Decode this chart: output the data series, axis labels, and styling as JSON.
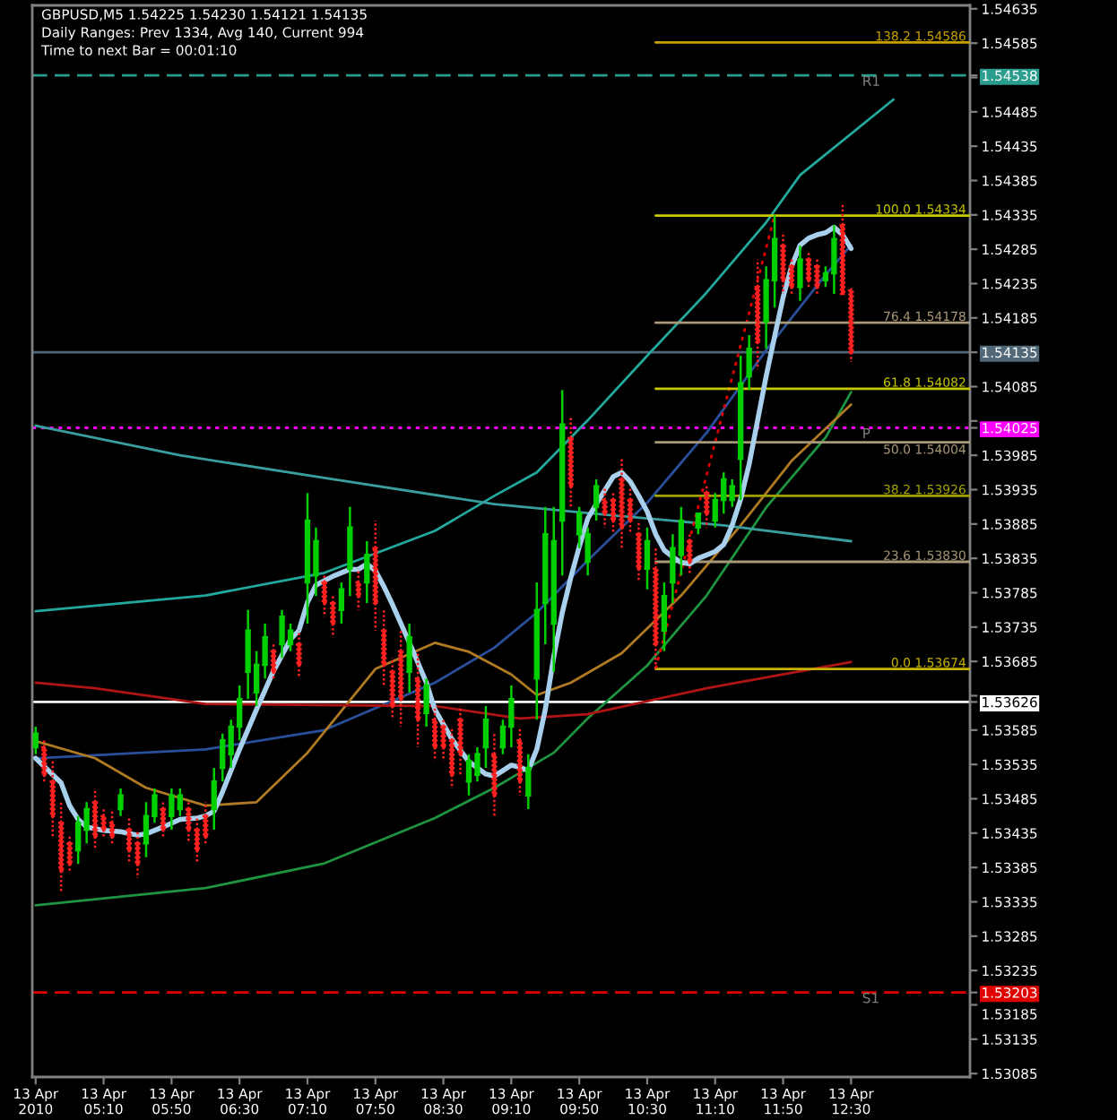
{
  "chart_data": {
    "type": "candlestick",
    "title": "GBPUSD,M5 1.54225 1.54230 1.54121 1.54135",
    "subtitle": "Daily Ranges: Prev 1334, Avg 140, Current 994",
    "annotations": [
      "Time to next Bar = 00:01:10"
    ],
    "x": [
      "2010-04-13T04:30",
      "2010-04-13T04:35",
      "2010-04-13T04:40",
      "2010-04-13T04:45",
      "2010-04-13T04:50",
      "2010-04-13T04:55",
      "2010-04-13T05:00",
      "2010-04-13T05:05",
      "2010-04-13T05:10",
      "2010-04-13T05:15",
      "2010-04-13T05:20",
      "2010-04-13T05:25",
      "2010-04-13T05:30",
      "2010-04-13T05:35",
      "2010-04-13T05:40",
      "2010-04-13T05:45",
      "2010-04-13T05:50",
      "2010-04-13T05:55",
      "2010-04-13T06:00",
      "2010-04-13T06:05",
      "2010-04-13T06:10",
      "2010-04-13T06:15",
      "2010-04-13T06:20",
      "2010-04-13T06:25",
      "2010-04-13T06:30",
      "2010-04-13T06:35",
      "2010-04-13T06:40",
      "2010-04-13T06:45",
      "2010-04-13T06:50",
      "2010-04-13T06:55",
      "2010-04-13T07:00",
      "2010-04-13T07:05",
      "2010-04-13T07:10",
      "2010-04-13T07:15",
      "2010-04-13T07:20",
      "2010-04-13T07:25",
      "2010-04-13T07:30",
      "2010-04-13T07:35",
      "2010-04-13T07:40",
      "2010-04-13T07:45",
      "2010-04-13T07:50",
      "2010-04-13T07:55",
      "2010-04-13T08:00",
      "2010-04-13T08:05",
      "2010-04-13T08:10",
      "2010-04-13T08:15",
      "2010-04-13T08:20",
      "2010-04-13T08:25",
      "2010-04-13T08:30",
      "2010-04-13T08:35",
      "2010-04-13T08:40",
      "2010-04-13T08:45",
      "2010-04-13T08:50",
      "2010-04-13T08:55",
      "2010-04-13T09:00",
      "2010-04-13T09:05",
      "2010-04-13T09:10",
      "2010-04-13T09:15",
      "2010-04-13T09:20",
      "2010-04-13T09:25",
      "2010-04-13T09:30",
      "2010-04-13T09:35",
      "2010-04-13T09:40",
      "2010-04-13T09:45",
      "2010-04-13T09:50",
      "2010-04-13T09:55",
      "2010-04-13T10:00",
      "2010-04-13T10:05",
      "2010-04-13T10:10",
      "2010-04-13T10:15",
      "2010-04-13T10:20",
      "2010-04-13T10:25",
      "2010-04-13T10:30",
      "2010-04-13T10:35",
      "2010-04-13T10:40",
      "2010-04-13T10:45",
      "2010-04-13T10:50",
      "2010-04-13T10:55",
      "2010-04-13T11:00",
      "2010-04-13T11:05",
      "2010-04-13T11:10",
      "2010-04-13T11:15",
      "2010-04-13T11:20",
      "2010-04-13T11:25",
      "2010-04-13T11:30",
      "2010-04-13T11:35",
      "2010-04-13T11:40",
      "2010-04-13T11:45",
      "2010-04-13T11:50",
      "2010-04-13T11:55",
      "2010-04-13T12:00",
      "2010-04-13T12:05",
      "2010-04-13T12:10",
      "2010-04-13T12:15",
      "2010-04-13T12:20",
      "2010-04-13T12:25",
      "2010-04-13T12:30"
    ],
    "ohlc": [
      [
        1.5356,
        1.5359,
        1.5355,
        1.5358
      ],
      [
        1.5356,
        1.5357,
        1.5351,
        1.5352
      ],
      [
        1.5351,
        1.5354,
        1.5343,
        1.5346
      ],
      [
        1.5345,
        1.5348,
        1.5335,
        1.5338
      ],
      [
        1.5342,
        1.5343,
        1.5338,
        1.5339
      ],
      [
        1.5341,
        1.5346,
        1.5339,
        1.5345
      ],
      [
        1.5344,
        1.5348,
        1.5342,
        1.5347
      ],
      [
        1.5348,
        1.535,
        1.5341,
        1.5343
      ],
      [
        1.5346,
        1.5347,
        1.5343,
        1.5344
      ],
      [
        1.5345,
        1.5347,
        1.5342,
        1.5343
      ],
      [
        1.5347,
        1.535,
        1.5346,
        1.5349
      ],
      [
        1.5344,
        1.5346,
        1.5339,
        1.5341
      ],
      [
        1.5342,
        1.5344,
        1.5337,
        1.5339
      ],
      [
        1.5342,
        1.5348,
        1.534,
        1.5346
      ],
      [
        1.5346,
        1.535,
        1.5345,
        1.5349
      ],
      [
        1.5347,
        1.5348,
        1.5343,
        1.5344
      ],
      [
        1.5346,
        1.535,
        1.5344,
        1.5349
      ],
      [
        1.5347,
        1.535,
        1.5346,
        1.5349
      ],
      [
        1.5347,
        1.5348,
        1.5342,
        1.5344
      ],
      [
        1.5344,
        1.5346,
        1.5339,
        1.5341
      ],
      [
        1.5346,
        1.5348,
        1.5342,
        1.5343
      ],
      [
        1.5347,
        1.5353,
        1.5344,
        1.5351
      ],
      [
        1.5353,
        1.5358,
        1.5351,
        1.5357
      ],
      [
        1.5355,
        1.536,
        1.5353,
        1.5359
      ],
      [
        1.5359,
        1.5365,
        1.5357,
        1.5363
      ],
      [
        1.5367,
        1.5376,
        1.5363,
        1.5373
      ],
      [
        1.5364,
        1.537,
        1.5362,
        1.5368
      ],
      [
        1.5368,
        1.5374,
        1.5366,
        1.5372
      ],
      [
        1.537,
        1.5371,
        1.5366,
        1.5367
      ],
      [
        1.5371,
        1.5376,
        1.5369,
        1.5375
      ],
      [
        1.5371,
        1.5374,
        1.537,
        1.5373
      ],
      [
        1.5371,
        1.5373,
        1.5366,
        1.5368
      ],
      [
        1.538,
        1.5393,
        1.5374,
        1.5389
      ],
      [
        1.5381,
        1.5388,
        1.5378,
        1.5386
      ],
      [
        1.538,
        1.5381,
        1.5375,
        1.5377
      ],
      [
        1.5377,
        1.5378,
        1.5372,
        1.5374
      ],
      [
        1.5376,
        1.538,
        1.5374,
        1.5379
      ],
      [
        1.5382,
        1.5391,
        1.5378,
        1.5388
      ],
      [
        1.538,
        1.5382,
        1.5376,
        1.5378
      ],
      [
        1.538,
        1.5386,
        1.5377,
        1.5384
      ],
      [
        1.5385,
        1.5389,
        1.5373,
        1.5377
      ],
      [
        1.5373,
        1.5376,
        1.5365,
        1.5368
      ],
      [
        1.5367,
        1.5369,
        1.536,
        1.5362
      ],
      [
        1.537,
        1.5373,
        1.5359,
        1.5363
      ],
      [
        1.5367,
        1.5374,
        1.5364,
        1.5372
      ],
      [
        1.5366,
        1.537,
        1.5356,
        1.536
      ],
      [
        1.5361,
        1.5366,
        1.5359,
        1.5365
      ],
      [
        1.536,
        1.5362,
        1.5354,
        1.5356
      ],
      [
        1.5359,
        1.536,
        1.5354,
        1.5356
      ],
      [
        1.5357,
        1.5359,
        1.535,
        1.5352
      ],
      [
        1.536,
        1.5362,
        1.5352,
        1.5355
      ],
      [
        1.5351,
        1.5355,
        1.5349,
        1.5354
      ],
      [
        1.5352,
        1.5356,
        1.5351,
        1.5355
      ],
      [
        1.5356,
        1.5362,
        1.5353,
        1.536
      ],
      [
        1.5355,
        1.5358,
        1.5346,
        1.5349
      ],
      [
        1.5356,
        1.536,
        1.5355,
        1.5359
      ],
      [
        1.5359,
        1.5365,
        1.5356,
        1.5363
      ],
      [
        1.5357,
        1.5359,
        1.5349,
        1.5351
      ],
      [
        1.5349,
        1.5355,
        1.5347,
        1.5353
      ],
      [
        1.5366,
        1.538,
        1.536,
        1.5376
      ],
      [
        1.5377,
        1.5391,
        1.5371,
        1.5387
      ],
      [
        1.5374,
        1.5391,
        1.5367,
        1.5386
      ],
      [
        1.5389,
        1.5408,
        1.5381,
        1.5403
      ],
      [
        1.5401,
        1.5404,
        1.5391,
        1.5394
      ],
      [
        1.5387,
        1.5391,
        1.5385,
        1.539
      ],
      [
        1.5383,
        1.5388,
        1.5381,
        1.5387
      ],
      [
        1.5391,
        1.5395,
        1.5389,
        1.5394
      ],
      [
        1.5392,
        1.5394,
        1.5388,
        1.539
      ],
      [
        1.5392,
        1.5393,
        1.5387,
        1.5389
      ],
      [
        1.5395,
        1.5398,
        1.5385,
        1.5388
      ],
      [
        1.5392,
        1.5394,
        1.5387,
        1.5389
      ],
      [
        1.5387,
        1.5389,
        1.538,
        1.5382
      ],
      [
        1.5382,
        1.5388,
        1.5379,
        1.5386
      ],
      [
        1.5382,
        1.5385,
        1.53674,
        1.5371
      ],
      [
        1.5373,
        1.538,
        1.537,
        1.5378
      ],
      [
        1.538,
        1.5387,
        1.5377,
        1.5385
      ],
      [
        1.5384,
        1.5391,
        1.5381,
        1.5389
      ],
      [
        1.5386,
        1.5387,
        1.5381,
        1.5383
      ],
      [
        1.5388,
        1.539,
        1.5387,
        1.539
      ],
      [
        1.5393,
        1.5394,
        1.5388,
        1.539
      ],
      [
        1.5389,
        1.5393,
        1.5388,
        1.5392
      ],
      [
        1.5392,
        1.5396,
        1.539,
        1.5395
      ],
      [
        1.5392,
        1.5395,
        1.5391,
        1.5394
      ],
      [
        1.5398,
        1.5413,
        1.5392,
        1.5409
      ],
      [
        1.541,
        1.5416,
        1.5408,
        1.5414
      ],
      [
        1.5423,
        1.5427,
        1.5411,
        1.5415
      ],
      [
        1.5418,
        1.5426,
        1.5414,
        1.5424
      ],
      [
        1.5424,
        1.54334,
        1.542,
        1.543
      ],
      [
        1.5429,
        1.5431,
        1.5422,
        1.5424
      ],
      [
        1.5426,
        1.5427,
        1.5422,
        1.5423
      ],
      [
        1.5423,
        1.5429,
        1.5421,
        1.5427
      ],
      [
        1.5427,
        1.5428,
        1.5423,
        1.5424
      ],
      [
        1.5426,
        1.5427,
        1.5422,
        1.5423
      ],
      [
        1.5424,
        1.5426,
        1.5423,
        1.5425
      ],
      [
        1.5425,
        1.5432,
        1.5422,
        1.543
      ],
      [
        1.5432,
        1.5435,
        1.5422,
        1.5422
      ],
      [
        1.54225,
        1.5423,
        1.54121,
        1.54135
      ]
    ],
    "series": [
      {
        "type": "line",
        "color": "#22a89c",
        "x": [
          "2010-04-13T04:30",
          "2010-04-13T06:10",
          "2010-04-13T07:20",
          "2010-04-13T08:25",
          "2010-04-13T09:00",
          "2010-04-13T09:25",
          "2010-04-13T09:55",
          "2010-04-13T10:30",
          "2010-04-13T11:05",
          "2010-04-13T11:40",
          "2010-04-13T12:00",
          "2010-04-13T12:55"
        ],
        "values": [
          1.53758,
          1.53781,
          1.53814,
          1.53875,
          1.53926,
          1.5396,
          1.54036,
          1.5413,
          1.54222,
          1.54324,
          1.54393,
          1.54503
        ]
      },
      {
        "type": "line",
        "color": "#2a4f9a",
        "x": [
          "2010-04-13T04:30",
          "2010-04-13T06:10",
          "2010-04-13T07:20",
          "2010-04-13T08:25",
          "2010-04-13T09:00",
          "2010-04-13T09:25",
          "2010-04-13T09:55",
          "2010-04-13T10:30",
          "2010-04-13T11:05",
          "2010-04-13T11:40",
          "2010-04-13T12:15",
          "2010-04-13T12:30"
        ],
        "values": [
          1.53544,
          1.53557,
          1.53585,
          1.53654,
          1.53705,
          1.53756,
          1.53832,
          1.53916,
          1.54018,
          1.54138,
          1.54248,
          1.54291
        ]
      },
      {
        "type": "line",
        "color": "#1f9440",
        "x": [
          "2010-04-13T04:30",
          "2010-04-13T06:10",
          "2010-04-13T07:20",
          "2010-04-13T08:25",
          "2010-04-13T09:00",
          "2010-04-13T09:35",
          "2010-04-13T09:55",
          "2010-04-13T10:30",
          "2010-04-13T11:05",
          "2010-04-13T11:40",
          "2010-04-13T12:15",
          "2010-04-13T12:30"
        ],
        "values": [
          1.5333,
          1.53355,
          1.53391,
          1.53457,
          1.53501,
          1.53552,
          1.53602,
          1.53679,
          1.53781,
          1.53909,
          1.54011,
          1.54077
        ]
      },
      {
        "type": "line",
        "color": "#b07a22",
        "x": [
          "2010-04-13T04:30",
          "2010-04-13T05:05",
          "2010-04-13T05:35",
          "2010-04-13T06:10",
          "2010-04-13T06:40",
          "2010-04-13T07:10",
          "2010-04-13T07:50",
          "2010-04-13T08:25",
          "2010-04-13T08:45",
          "2010-04-13T09:10",
          "2010-04-13T09:25",
          "2010-04-13T09:45",
          "2010-04-13T10:15",
          "2010-04-13T10:50",
          "2010-04-13T11:25",
          "2010-04-13T11:55",
          "2010-04-13T12:30"
        ],
        "values": [
          1.53569,
          1.53544,
          1.53501,
          1.53475,
          1.5348,
          1.53552,
          1.53674,
          1.53712,
          1.53699,
          1.53666,
          1.53636,
          1.53654,
          1.53697,
          1.53781,
          1.53883,
          1.53977,
          1.54059
        ]
      },
      {
        "type": "line",
        "color": "#3a9e9e",
        "x": [
          "2010-04-13T04:30",
          "2010-04-13T05:55",
          "2010-04-13T07:20",
          "2010-04-13T09:00",
          "2010-04-13T09:55",
          "2010-04-13T11:15",
          "2010-04-13T12:30"
        ],
        "values": [
          1.54028,
          1.53985,
          1.53952,
          1.53914,
          1.53901,
          1.53883,
          1.5386
        ]
      },
      {
        "type": "line",
        "color": "#b01414",
        "x": [
          "2010-04-13T04:30",
          "2010-04-13T05:05",
          "2010-04-13T06:10",
          "2010-04-13T08:25",
          "2010-04-13T09:15",
          "2010-04-13T09:55",
          "2010-04-13T11:05",
          "2010-04-13T12:30"
        ],
        "values": [
          1.53654,
          1.53646,
          1.53623,
          1.5362,
          1.53602,
          1.53608,
          1.53646,
          1.53684
        ]
      },
      {
        "type": "line",
        "color": "#a8d0ec",
        "x": [
          "2010-04-13T04:30",
          "2010-04-13T04:45",
          "2010-04-13T04:50",
          "2010-04-13T04:55",
          "2010-04-13T05:00",
          "2010-04-13T05:10",
          "2010-04-13T05:20",
          "2010-04-13T05:30",
          "2010-04-13T05:35",
          "2010-04-13T05:45",
          "2010-04-13T05:55",
          "2010-04-13T06:05",
          "2010-04-13T06:10",
          "2010-04-13T06:15",
          "2010-04-13T06:20",
          "2010-04-13T06:30",
          "2010-04-13T06:40",
          "2010-04-13T06:50",
          "2010-04-13T07:00",
          "2010-04-13T07:05",
          "2010-04-13T07:10",
          "2010-04-13T07:15",
          "2010-04-13T07:25",
          "2010-04-13T07:35",
          "2010-04-13T07:40",
          "2010-04-13T07:45",
          "2010-04-13T07:50",
          "2010-04-13T07:55",
          "2010-04-13T08:00",
          "2010-04-13T08:10",
          "2010-04-13T08:20",
          "2010-04-13T08:25",
          "2010-04-13T08:35",
          "2010-04-13T08:45",
          "2010-04-13T08:55",
          "2010-04-13T09:00",
          "2010-04-13T09:05",
          "2010-04-13T09:10",
          "2010-04-13T09:15",
          "2010-04-13T09:20",
          "2010-04-13T09:25",
          "2010-04-13T09:30",
          "2010-04-13T09:35",
          "2010-04-13T09:40",
          "2010-04-13T09:45",
          "2010-04-13T09:50",
          "2010-04-13T09:55",
          "2010-04-13T10:00",
          "2010-04-13T10:05",
          "2010-04-13T10:10",
          "2010-04-13T10:15",
          "2010-04-13T10:20",
          "2010-04-13T10:25",
          "2010-04-13T10:30",
          "2010-04-13T10:35",
          "2010-04-13T10:40",
          "2010-04-13T10:45",
          "2010-04-13T10:50",
          "2010-04-13T10:55",
          "2010-04-13T11:00",
          "2010-04-13T11:05",
          "2010-04-13T11:10",
          "2010-04-13T11:15",
          "2010-04-13T11:20",
          "2010-04-13T11:25",
          "2010-04-13T11:30",
          "2010-04-13T11:35",
          "2010-04-13T11:40",
          "2010-04-13T11:45",
          "2010-04-13T11:50",
          "2010-04-13T11:55",
          "2010-04-13T12:00",
          "2010-04-13T12:05",
          "2010-04-13T12:10",
          "2010-04-13T12:15",
          "2010-04-13T12:20",
          "2010-04-13T12:25",
          "2010-04-13T12:30"
        ],
        "values": [
          1.53544,
          1.53508,
          1.53475,
          1.53455,
          1.53444,
          1.53439,
          1.53437,
          1.53432,
          1.53434,
          1.53444,
          1.53455,
          1.53457,
          1.5346,
          1.53467,
          1.53495,
          1.53557,
          1.53615,
          1.53671,
          1.53717,
          1.5373,
          1.53771,
          1.53796,
          1.53809,
          1.53819,
          1.53819,
          1.53827,
          1.53817,
          1.53794,
          1.53768,
          1.53712,
          1.53654,
          1.53615,
          1.53572,
          1.53539,
          1.53521,
          1.53518,
          1.53526,
          1.53534,
          1.53531,
          1.53526,
          1.53557,
          1.53615,
          1.53692,
          1.53756,
          1.53807,
          1.53852,
          1.53893,
          1.53914,
          1.53934,
          1.53954,
          1.5396,
          1.53947,
          1.53926,
          1.53903,
          1.5387,
          1.53847,
          1.53837,
          1.53829,
          1.53827,
          1.53835,
          1.5384,
          1.53845,
          1.53855,
          1.53883,
          1.53921,
          1.53972,
          1.54036,
          1.541,
          1.54158,
          1.54215,
          1.5426,
          1.54291,
          1.54301,
          1.54306,
          1.54309,
          1.54317,
          1.54306,
          1.54286
        ]
      },
      {
        "type": "line",
        "color": "#e00000",
        "line_style": "dotted",
        "x": [
          "2010-04-13T10:35",
          "2010-04-13T11:45"
        ],
        "values": [
          1.53674,
          1.54334
        ]
      },
      {
        "type": "line",
        "name": "0.0 1.53674",
        "color": "#c8b400",
        "x": [
          "2010-04-13T10:35",
          "2010-04-13T13:40"
        ],
        "values": [
          1.53674,
          1.53674
        ]
      },
      {
        "type": "line",
        "name": "23.6 1.53830",
        "color": "#a89878",
        "x": [
          "2010-04-13T10:35",
          "2010-04-13T13:40"
        ],
        "values": [
          1.5383,
          1.5383
        ]
      },
      {
        "type": "line",
        "name": "38.2 1.53926",
        "color": "#a0a000",
        "x": [
          "2010-04-13T10:35",
          "2010-04-13T13:40"
        ],
        "values": [
          1.53926,
          1.53926
        ]
      },
      {
        "type": "line",
        "name": "50.0 1.54004",
        "color": "#a89878",
        "x": [
          "2010-04-13T10:35",
          "2010-04-13T13:40"
        ],
        "values": [
          1.54004,
          1.54004
        ]
      },
      {
        "type": "line",
        "name": "61.8 1.54082",
        "color": "#c8c800",
        "x": [
          "2010-04-13T10:35",
          "2010-04-13T13:40"
        ],
        "values": [
          1.54082,
          1.54082
        ]
      },
      {
        "type": "line",
        "name": "76.4 1.54178",
        "color": "#a89878",
        "x": [
          "2010-04-13T10:35",
          "2010-04-13T13:40"
        ],
        "values": [
          1.54178,
          1.54178
        ]
      },
      {
        "type": "line",
        "name": "100.0 1.54334",
        "color": "#c8c800",
        "x": [
          "2010-04-13T10:35",
          "2010-04-13T13:40"
        ],
        "values": [
          1.54334,
          1.54334
        ]
      },
      {
        "type": "line",
        "name": "138.2 1.54586",
        "color": "#c8a000",
        "x": [
          "2010-04-13T10:35",
          "2010-04-13T13:40"
        ],
        "values": [
          1.54586,
          1.54586
        ]
      }
    ],
    "ref_lines": [
      {
        "axis": "y",
        "value": 1.54538,
        "label": "R1",
        "color": "#2a9d8f",
        "line_style": "dashed"
      },
      {
        "axis": "y",
        "value": 1.54135,
        "color": "#506878"
      },
      {
        "axis": "y",
        "value": 1.54025,
        "label": "P",
        "color": "#ff00ff",
        "line_style": "dotted"
      },
      {
        "axis": "y",
        "value": 1.53626,
        "color": "#ffffff"
      },
      {
        "axis": "y",
        "value": 1.53203,
        "label": "S1",
        "color": "#e00000",
        "line_style": "dashed"
      }
    ],
    "xlim": [
      "2010-04-13T04:28",
      "2010-04-13T13:40"
    ],
    "xticks": [
      {
        "value": "2010-04-13T04:30",
        "label": "13 Apr 2010"
      },
      {
        "value": "2010-04-13T05:10",
        "label": "13 Apr 05:10"
      },
      {
        "value": "2010-04-13T05:50",
        "label": "13 Apr 05:50"
      },
      {
        "value": "2010-04-13T06:30",
        "label": "13 Apr 06:30"
      },
      {
        "value": "2010-04-13T07:10",
        "label": "13 Apr 07:10"
      },
      {
        "value": "2010-04-13T07:50",
        "label": "13 Apr 07:50"
      },
      {
        "value": "2010-04-13T08:30",
        "label": "13 Apr 08:30"
      },
      {
        "value": "2010-04-13T09:10",
        "label": "13 Apr 09:10"
      },
      {
        "value": "2010-04-13T09:50",
        "label": "13 Apr 09:50"
      },
      {
        "value": "2010-04-13T10:30",
        "label": "13 Apr 10:30"
      },
      {
        "value": "2010-04-13T11:10",
        "label": "13 Apr 11:10"
      },
      {
        "value": "2010-04-13T11:50",
        "label": "13 Apr 11:50"
      },
      {
        "value": "2010-04-13T12:30",
        "label": "13 Apr 12:30"
      }
    ],
    "ylim": [
      1.5308,
      1.5464
    ],
    "yticks": [
      1.53085,
      1.53135,
      1.53185,
      1.53203,
      1.53235,
      1.53285,
      1.53335,
      1.53385,
      1.53435,
      1.53485,
      1.53535,
      1.53585,
      1.53626,
      {
        "value": 1.53635,
        "label": null
      },
      1.53685,
      1.53735,
      1.53785,
      1.53835,
      1.53885,
      1.53935,
      1.53985,
      1.54025,
      {
        "value": 1.54035,
        "label": null
      },
      1.54085,
      1.54135,
      1.54185,
      1.54235,
      1.54285,
      1.54335,
      1.54385,
      1.54435,
      1.54485,
      {
        "value": 1.54535,
        "label": null
      },
      1.54538,
      1.54585,
      1.54635
    ]
  }
}
